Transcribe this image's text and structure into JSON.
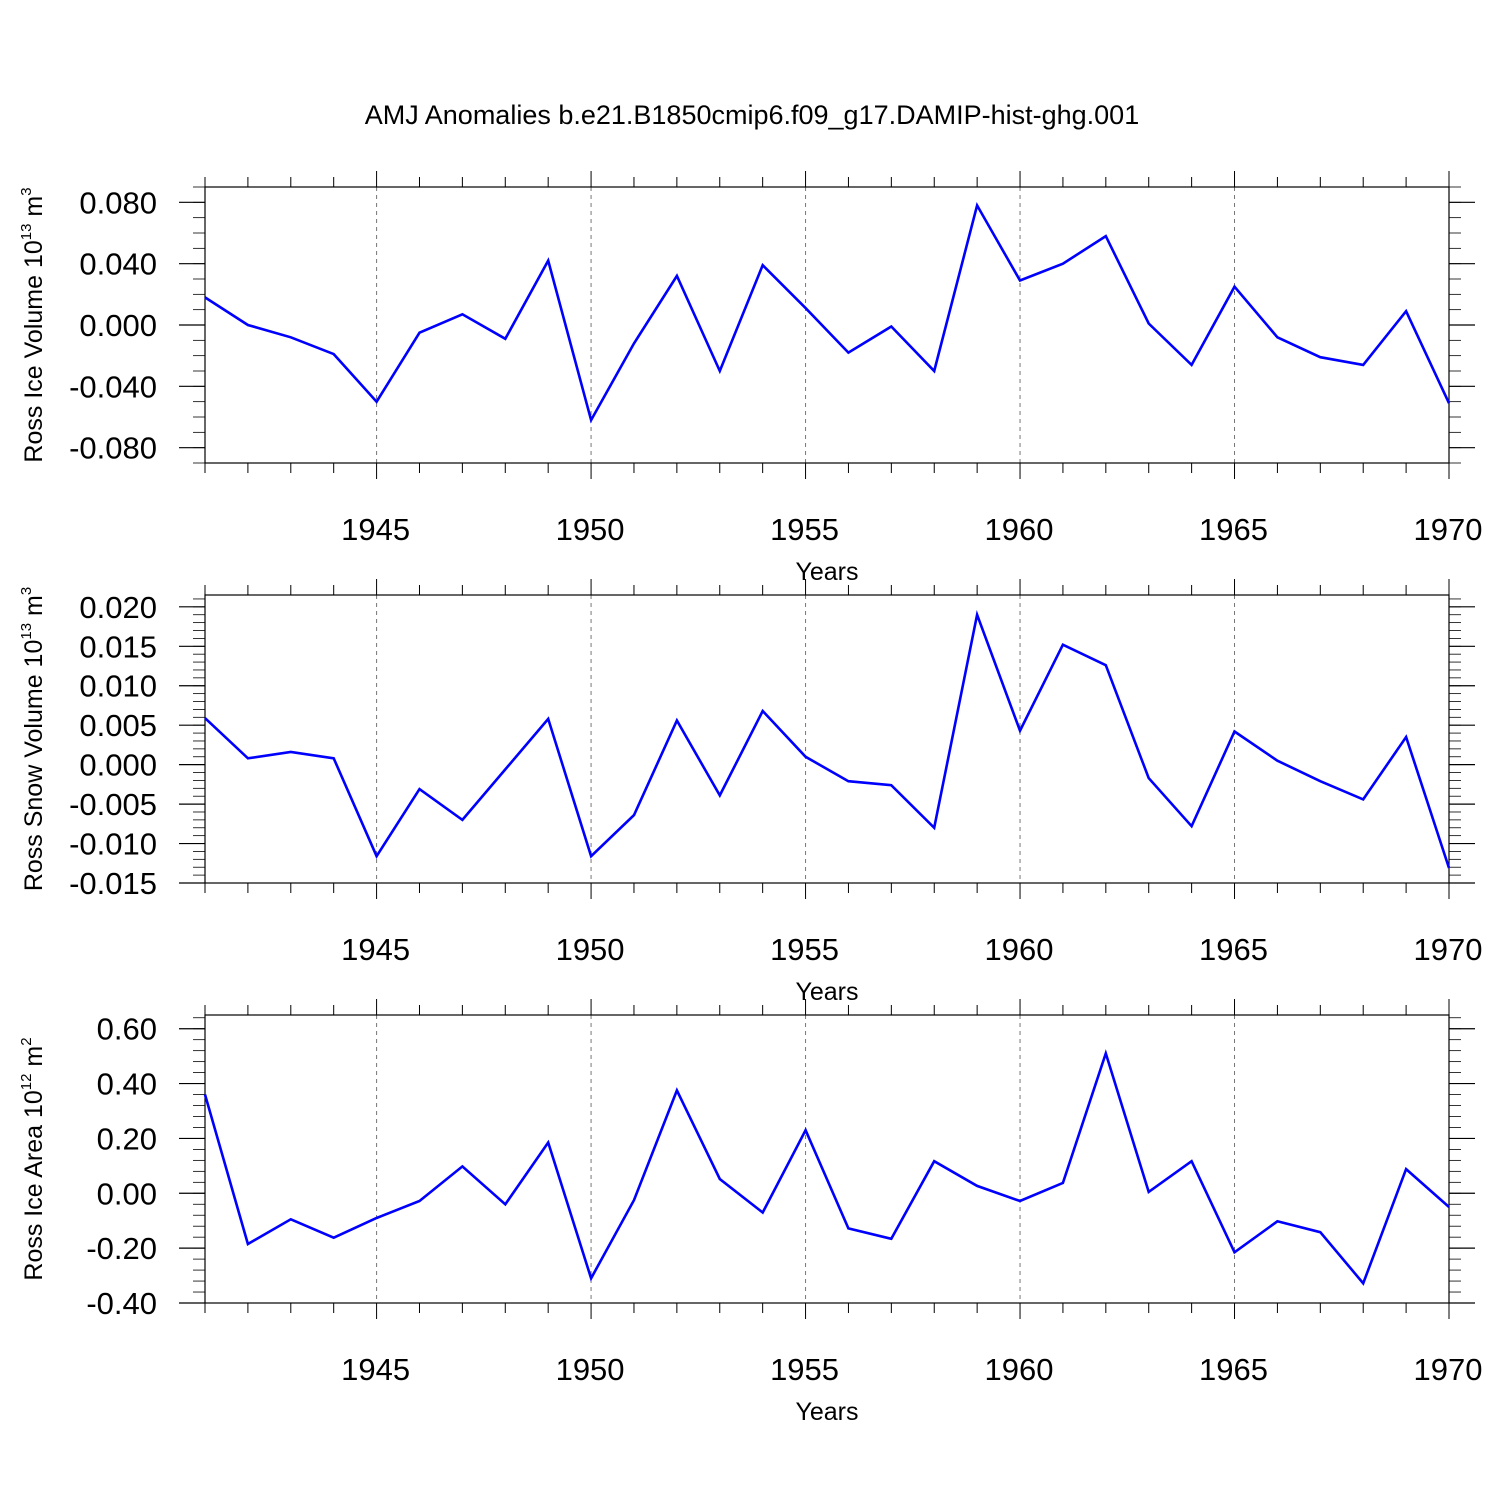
{
  "title": "AMJ Anomalies b.e21.B1850cmip6.f09_g17.DAMIP-hist-ghg.001",
  "line_color": "#0000ff",
  "chart_data": [
    {
      "type": "line",
      "ylabel": {
        "prefix": "Ross Ice Volume 10",
        "exponent": "13",
        "unit": " m",
        "unit_exponent": "3"
      },
      "xlabel": "Years",
      "xlim": [
        1941,
        1970
      ],
      "ylim": [
        -0.09,
        0.09
      ],
      "yticks": [
        -0.08,
        -0.04,
        0.0,
        0.04,
        0.08
      ],
      "ytick_labels": [
        "-0.080",
        "-0.040",
        "0.000",
        "0.040",
        "0.080"
      ],
      "yminor_step": 0.01,
      "xticks": [
        1945,
        1950,
        1955,
        1960,
        1965,
        1970
      ],
      "xtick_labels": [
        "1945",
        "1950",
        "1955",
        "1960",
        "1965",
        "1970"
      ],
      "x": [
        1941,
        1942,
        1943,
        1944,
        1945,
        1946,
        1947,
        1948,
        1949,
        1950,
        1951,
        1952,
        1953,
        1954,
        1955,
        1956,
        1957,
        1958,
        1959,
        1960,
        1961,
        1962,
        1963,
        1964,
        1965,
        1966,
        1967,
        1968,
        1969,
        1970
      ],
      "values": [
        0.018,
        0.0,
        -0.008,
        -0.019,
        -0.05,
        -0.005,
        0.007,
        -0.009,
        0.042,
        -0.062,
        -0.012,
        0.032,
        -0.03,
        0.039,
        0.011,
        -0.018,
        -0.001,
        -0.03,
        0.078,
        0.029,
        0.04,
        0.058,
        0.001,
        -0.026,
        0.025,
        -0.008,
        -0.021,
        -0.026,
        0.009,
        -0.051
      ]
    },
    {
      "type": "line",
      "ylabel": {
        "prefix": "Ross Snow Volume 10",
        "exponent": "13",
        "unit": " m",
        "unit_exponent": "3"
      },
      "xlabel": "Years",
      "xlim": [
        1941,
        1970
      ],
      "ylim": [
        -0.015,
        0.0215
      ],
      "yticks": [
        -0.015,
        -0.01,
        -0.005,
        0.0,
        0.005,
        0.01,
        0.015,
        0.02
      ],
      "ytick_labels": [
        "-0.015",
        "-0.010",
        "-0.005",
        "0.000",
        "0.005",
        "0.010",
        "0.015",
        "0.020"
      ],
      "yminor_step": 0.001,
      "xticks": [
        1945,
        1950,
        1955,
        1960,
        1965,
        1970
      ],
      "xtick_labels": [
        "1945",
        "1950",
        "1955",
        "1960",
        "1965",
        "1970"
      ],
      "x": [
        1941,
        1942,
        1943,
        1944,
        1945,
        1946,
        1947,
        1948,
        1949,
        1950,
        1951,
        1952,
        1953,
        1954,
        1955,
        1956,
        1957,
        1958,
        1959,
        1960,
        1961,
        1962,
        1963,
        1964,
        1965,
        1966,
        1967,
        1968,
        1969,
        1970
      ],
      "values": [
        0.0059,
        0.0008,
        0.0016,
        0.0008,
        -0.0116,
        -0.0031,
        -0.007,
        -0.0006,
        0.0058,
        -0.0116,
        -0.0064,
        0.0056,
        -0.0039,
        0.0068,
        0.001,
        -0.0021,
        -0.0026,
        -0.008,
        0.019,
        0.0043,
        0.0152,
        0.0126,
        -0.0017,
        -0.0078,
        0.0042,
        0.0005,
        -0.0021,
        -0.0044,
        0.0035,
        -0.0131
      ]
    },
    {
      "type": "line",
      "ylabel": {
        "prefix": "Ross Ice Area 10",
        "exponent": "12",
        "unit": " m",
        "unit_exponent": "2"
      },
      "xlabel": "Years",
      "xlim": [
        1941,
        1970
      ],
      "ylim": [
        -0.4,
        0.65
      ],
      "yticks": [
        -0.4,
        -0.2,
        0.0,
        0.2,
        0.4,
        0.6
      ],
      "ytick_labels": [
        "-0.40",
        "-0.20",
        "0.00",
        "0.20",
        "0.40",
        "0.60"
      ],
      "yminor_step": 0.04,
      "xticks": [
        1945,
        1950,
        1955,
        1960,
        1965,
        1970
      ],
      "xtick_labels": [
        "1945",
        "1950",
        "1955",
        "1960",
        "1965",
        "1970"
      ],
      "x": [
        1941,
        1942,
        1943,
        1944,
        1945,
        1946,
        1947,
        1948,
        1949,
        1950,
        1951,
        1952,
        1953,
        1954,
        1955,
        1956,
        1957,
        1958,
        1959,
        1960,
        1961,
        1962,
        1963,
        1964,
        1965,
        1966,
        1967,
        1968,
        1969,
        1970
      ],
      "values": [
        0.36,
        -0.185,
        -0.095,
        -0.162,
        -0.09,
        -0.028,
        0.098,
        -0.04,
        0.185,
        -0.31,
        -0.025,
        0.375,
        0.052,
        -0.07,
        0.23,
        -0.128,
        -0.166,
        0.117,
        0.027,
        -0.028,
        0.038,
        0.51,
        0.005,
        0.117,
        -0.215,
        -0.102,
        -0.142,
        -0.328,
        0.088,
        -0.05
      ]
    }
  ]
}
